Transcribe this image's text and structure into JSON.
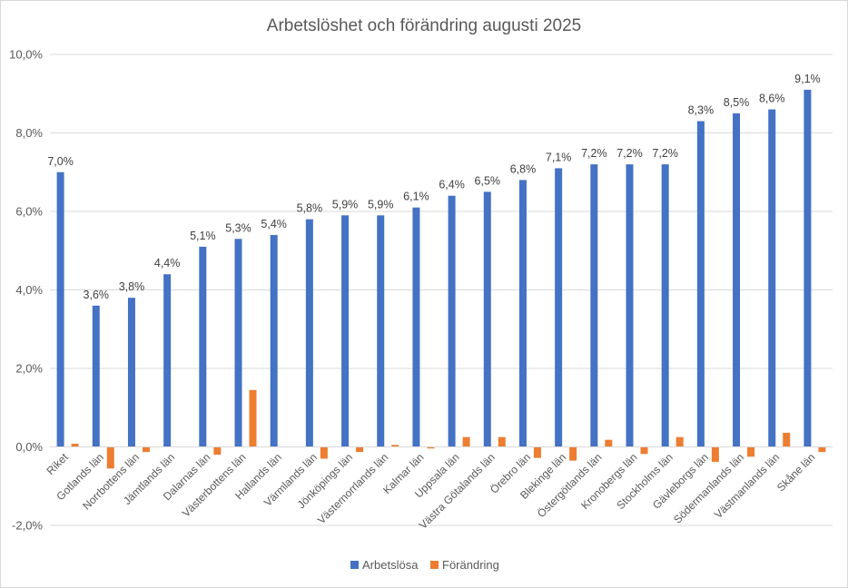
{
  "chart_data": {
    "type": "bar",
    "title": "Arbetslöshet och förändring augusti 2025",
    "xlabel": "",
    "ylabel": "",
    "ylim": [
      -2.0,
      10.0
    ],
    "ytick_step": 2.0,
    "yticks": [
      "-2,0%",
      "0,0%",
      "2,0%",
      "4,0%",
      "6,0%",
      "8,0%",
      "10,0%"
    ],
    "grid": true,
    "legend_position": "bottom",
    "categories": [
      "Riket",
      "Gotlands län",
      "Norrbottens län",
      "Jämtlands län",
      "Dalarnas län",
      "Västerbottens län",
      "Hallands län",
      "Värmlands län",
      "Jönköpings län",
      "Västernorrlands län",
      "Kalmar län",
      "Uppsala län",
      "Västra Götalands län",
      "Örebro län",
      "Blekinge län",
      "Östergötlands län",
      "Kronobergs län",
      "Stockholms län",
      "Gävleborgs län",
      "Södermanlands län",
      "Västmanlands län",
      "Skåne län"
    ],
    "series": [
      {
        "name": "Arbetslösa",
        "color": "#4472C4",
        "values": [
          7.0,
          3.6,
          3.8,
          4.4,
          5.1,
          5.3,
          5.4,
          5.8,
          5.9,
          5.9,
          6.1,
          6.4,
          6.5,
          6.8,
          7.1,
          7.2,
          7.2,
          7.2,
          8.3,
          8.5,
          8.6,
          9.1
        ],
        "labels": [
          "7,0%",
          "3,6%",
          "3,8%",
          "4,4%",
          "5,1%",
          "5,3%",
          "5,4%",
          "5,8%",
          "5,9%",
          "5,9%",
          "6,1%",
          "6,4%",
          "6,5%",
          "6,8%",
          "7,1%",
          "7,2%",
          "7,2%",
          "7,2%",
          "8,3%",
          "8,5%",
          "8,6%",
          "9,1%"
        ]
      },
      {
        "name": "Förändring",
        "color": "#ED7D31",
        "values": [
          0.08,
          -0.55,
          -0.13,
          0.0,
          -0.2,
          1.45,
          0.0,
          -0.3,
          -0.13,
          0.05,
          -0.04,
          0.25,
          0.25,
          -0.28,
          -0.35,
          0.18,
          -0.18,
          0.25,
          -0.38,
          -0.25,
          0.36,
          -0.13
        ]
      }
    ]
  }
}
